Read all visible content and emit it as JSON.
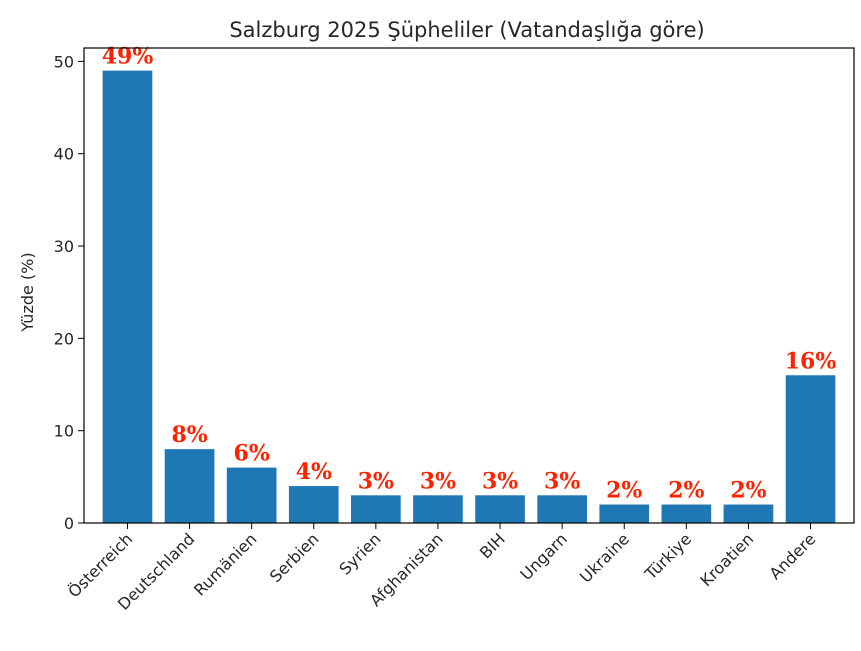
{
  "chart_data": {
    "type": "bar",
    "title": "Salzburg 2025 Şüpheliler (Vatandaşlığa göre)",
    "xlabel": "",
    "ylabel": "Yüzde (%)",
    "categories": [
      "Österreich",
      "Deutschland",
      "Rumänien",
      "Serbien",
      "Syrien",
      "Afghanistan",
      "BIH",
      "Ungarn",
      "Ukraine",
      "Türkiye",
      "Kroatien",
      "Andere"
    ],
    "values": [
      49,
      8,
      6,
      4,
      3,
      3,
      3,
      3,
      2,
      2,
      2,
      16
    ],
    "data_labels": [
      "49%",
      "8%",
      "6%",
      "4%",
      "3%",
      "3%",
      "3%",
      "3%",
      "2%",
      "2%",
      "2%",
      "16%"
    ],
    "ylim": [
      0,
      51.45
    ],
    "yticks": [
      0,
      10,
      20,
      30,
      40,
      50
    ],
    "grid": false,
    "colors": {
      "bar": "#1f77b4",
      "data_label": "#ff2200",
      "axis": "#000000"
    }
  }
}
